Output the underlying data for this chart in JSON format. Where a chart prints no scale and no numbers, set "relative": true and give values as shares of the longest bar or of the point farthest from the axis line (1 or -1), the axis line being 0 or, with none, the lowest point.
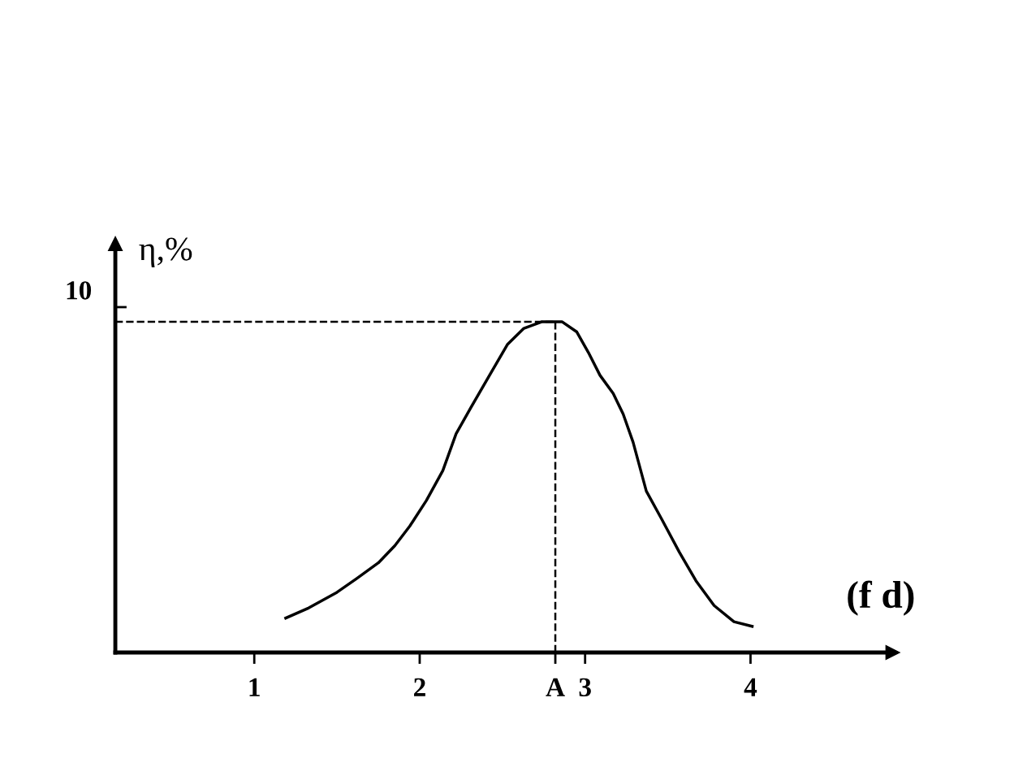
{
  "chart_data": {
    "type": "line",
    "xlabel": "(f d)",
    "ylabel": "η,%",
    "relative": true,
    "x": [
      1.19,
      1.33,
      1.5,
      1.62,
      1.75,
      1.85,
      1.94,
      2.04,
      2.14,
      2.22,
      2.31,
      2.43,
      2.53,
      2.63,
      2.74,
      2.86,
      2.95,
      3.02,
      3.09,
      3.17,
      3.23,
      3.29,
      3.37,
      3.46,
      3.57,
      3.67,
      3.78,
      3.9,
      4.01
    ],
    "series": [
      {
        "color": "#000000",
        "values": [
          0.104,
          0.135,
          0.182,
          0.224,
          0.271,
          0.323,
          0.382,
          0.459,
          0.55,
          0.661,
          0.741,
          0.845,
          0.931,
          0.98,
          1,
          1,
          0.969,
          0.907,
          0.838,
          0.783,
          0.721,
          0.636,
          0.488,
          0.406,
          0.303,
          0.217,
          0.142,
          0.093,
          0.079
        ]
      }
    ],
    "xlim": [
      0.16,
      4.86
    ],
    "xticks": [
      1,
      2,
      {
        "value": 2.82,
        "label": "A"
      },
      3,
      4
    ],
    "annotations": [
      "10"
    ],
    "ref_lines": [
      {
        "axis": "y",
        "value": 1,
        "color": "#000000",
        "line_style": "dashed"
      },
      {
        "axis": "x",
        "value": 2.82,
        "color": "#000000",
        "line_style": "dashed"
      }
    ],
    "grid": false,
    "legend": false,
    "marker": "none",
    "line_style": "solid"
  }
}
